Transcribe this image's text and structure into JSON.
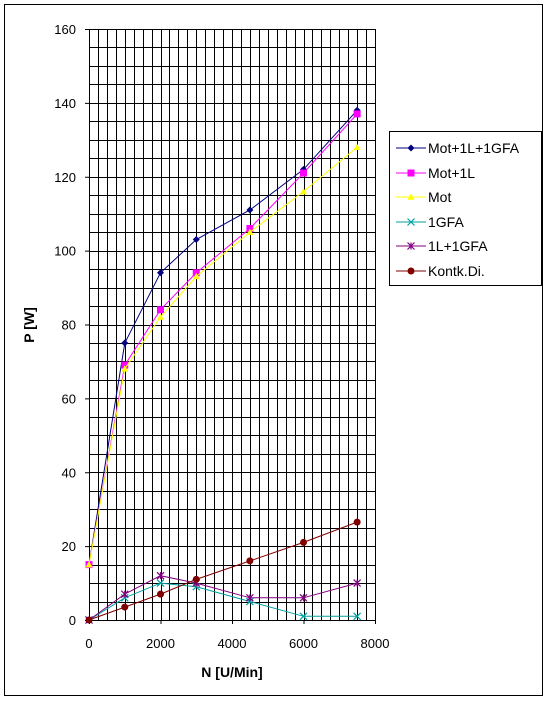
{
  "chart_data": {
    "type": "line",
    "title": "",
    "xlabel": "N [U/Min]",
    "ylabel": "P [W]",
    "xlim": [
      0,
      8000
    ],
    "ylim": [
      0,
      160
    ],
    "x_ticks": [
      0,
      2000,
      4000,
      6000,
      8000
    ],
    "y_ticks": [
      0,
      20,
      40,
      60,
      80,
      100,
      120,
      140,
      160
    ],
    "grid": "on",
    "legend_position": "right",
    "series": [
      {
        "name": "Mot+1L+1GFA",
        "color": "#000080",
        "marker": "diamond",
        "x": [
          0,
          1000,
          2000,
          3000,
          4500,
          6000,
          7500
        ],
        "y": [
          15,
          75,
          94,
          103,
          111,
          122,
          138
        ]
      },
      {
        "name": "Mot+1L",
        "color": "#ff00ff",
        "marker": "square",
        "x": [
          0,
          1000,
          2000,
          3000,
          4500,
          6000,
          7500
        ],
        "y": [
          15,
          69,
          84,
          94,
          106,
          121,
          137
        ]
      },
      {
        "name": "Mot",
        "color": "#ffff00",
        "marker": "triangle",
        "x": [
          0,
          1000,
          2000,
          3000,
          4500,
          6000,
          7500
        ],
        "y": [
          15,
          68,
          82,
          93,
          105,
          116,
          128
        ]
      },
      {
        "name": "1GFA",
        "color": "#00a0a0",
        "marker": "x",
        "x": [
          0,
          1000,
          2000,
          3000,
          4500,
          6000,
          7500
        ],
        "y": [
          0,
          6,
          10,
          9,
          5,
          1,
          1
        ]
      },
      {
        "name": "1L+1GFA",
        "color": "#800080",
        "marker": "star",
        "x": [
          0,
          1000,
          2000,
          3000,
          4500,
          6000,
          7500
        ],
        "y": [
          0,
          7,
          12,
          10,
          6,
          6,
          10
        ]
      },
      {
        "name": "Kontk.Di.",
        "color": "#800000",
        "marker": "circle",
        "x": [
          0,
          1000,
          2000,
          3000,
          4500,
          6000,
          7500
        ],
        "y": [
          0,
          3.5,
          7,
          11,
          16,
          21,
          26.5
        ]
      }
    ]
  }
}
